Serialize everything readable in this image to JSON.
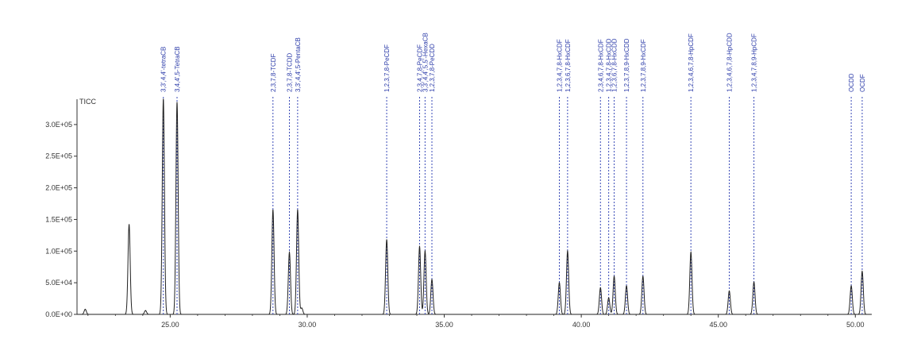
{
  "chart_data": {
    "type": "line",
    "title": "",
    "series_label": "TICC",
    "xlabel": "",
    "ylabel": "",
    "xlim": [
      21.6,
      50.6
    ],
    "ylim": [
      0,
      340000
    ],
    "x_ticks": [
      {
        "value": 25,
        "label": "25.00"
      },
      {
        "value": 30,
        "label": "30.00"
      },
      {
        "value": 35,
        "label": "35.00"
      },
      {
        "value": 40,
        "label": "40.00"
      },
      {
        "value": 45,
        "label": "45.00"
      },
      {
        "value": 50,
        "label": "50.00"
      }
    ],
    "y_ticks": [
      {
        "value": 0,
        "label": "0.0E+00"
      },
      {
        "value": 50000,
        "label": "5.0E+04"
      },
      {
        "value": 100000,
        "label": "1.0E+05"
      },
      {
        "value": 150000,
        "label": "1.5E+05"
      },
      {
        "value": 200000,
        "label": "2.0E+05"
      },
      {
        "value": 250000,
        "label": "2.5E+05"
      },
      {
        "value": 300000,
        "label": "3.0E+05"
      }
    ],
    "peaks": [
      {
        "x": 21.9,
        "y": 8000
      },
      {
        "x": 23.5,
        "y": 142000
      },
      {
        "x": 24.1,
        "y": 6000
      },
      {
        "x": 24.75,
        "y": 340000
      },
      {
        "x": 25.25,
        "y": 335000
      },
      {
        "x": 28.75,
        "y": 165000
      },
      {
        "x": 29.35,
        "y": 98000
      },
      {
        "x": 29.65,
        "y": 165000
      },
      {
        "x": 29.8,
        "y": 10000
      },
      {
        "x": 32.9,
        "y": 118000
      },
      {
        "x": 34.1,
        "y": 107000
      },
      {
        "x": 34.3,
        "y": 100000
      },
      {
        "x": 34.55,
        "y": 55000
      },
      {
        "x": 39.2,
        "y": 50000
      },
      {
        "x": 39.5,
        "y": 100000
      },
      {
        "x": 40.7,
        "y": 42000
      },
      {
        "x": 41.0,
        "y": 26000
      },
      {
        "x": 41.2,
        "y": 60000
      },
      {
        "x": 41.65,
        "y": 45000
      },
      {
        "x": 42.25,
        "y": 60000
      },
      {
        "x": 44.0,
        "y": 98000
      },
      {
        "x": 45.4,
        "y": 37000
      },
      {
        "x": 46.3,
        "y": 51000
      },
      {
        "x": 49.85,
        "y": 45000
      },
      {
        "x": 50.25,
        "y": 68000
      }
    ],
    "annotations": [
      {
        "x": 24.75,
        "label": "3,3',4,4'-tetraCB"
      },
      {
        "x": 25.25,
        "label": "3,4,4',5-TetraCB"
      },
      {
        "x": 28.75,
        "label": "2,3,7,8-TCDF"
      },
      {
        "x": 29.35,
        "label": "2,3,7,8-TCDD"
      },
      {
        "x": 29.65,
        "label": "3,3',4,4',5-PentaCB"
      },
      {
        "x": 32.9,
        "label": "1,2,3,7,8-PeCDF"
      },
      {
        "x": 34.1,
        "label": "2,3,4,7,8-PeCDF"
      },
      {
        "x": 34.3,
        "label": "3,3',4,4',5,5'-HexaCB"
      },
      {
        "x": 34.55,
        "label": "1,2,3,7,8-PeCDD"
      },
      {
        "x": 39.2,
        "label": "1,2,3,4,7,8-HxCDF"
      },
      {
        "x": 39.5,
        "label": "1,2,3,6,7,8-HxCDF"
      },
      {
        "x": 40.7,
        "label": "2,3,4,6,7,8-HxCDF"
      },
      {
        "x": 41.0,
        "label": "1,2,3,4,7,8-HxCDD"
      },
      {
        "x": 41.2,
        "label": "1,2,3,6,7,8-HxCDD"
      },
      {
        "x": 41.65,
        "label": "1,2,3,7,8,9-HxCDD"
      },
      {
        "x": 42.25,
        "label": "1,2,3,7,8,9-HxCDF"
      },
      {
        "x": 44.0,
        "label": "1,2,3,4,6,7,8-HpCDF"
      },
      {
        "x": 45.4,
        "label": "1,2,3,4,6,7,8-HpCDD"
      },
      {
        "x": 46.3,
        "label": "1,2,3,4,7,8,9-HpCDF"
      },
      {
        "x": 49.85,
        "label": "OCDD"
      },
      {
        "x": 50.25,
        "label": "OCDF"
      }
    ],
    "legend": "none",
    "grid": false,
    "colors": {
      "trace": "#222222",
      "marker_line": "#3a4bb8",
      "marker_text": "#2a3aa8",
      "axis": "#333333"
    }
  }
}
